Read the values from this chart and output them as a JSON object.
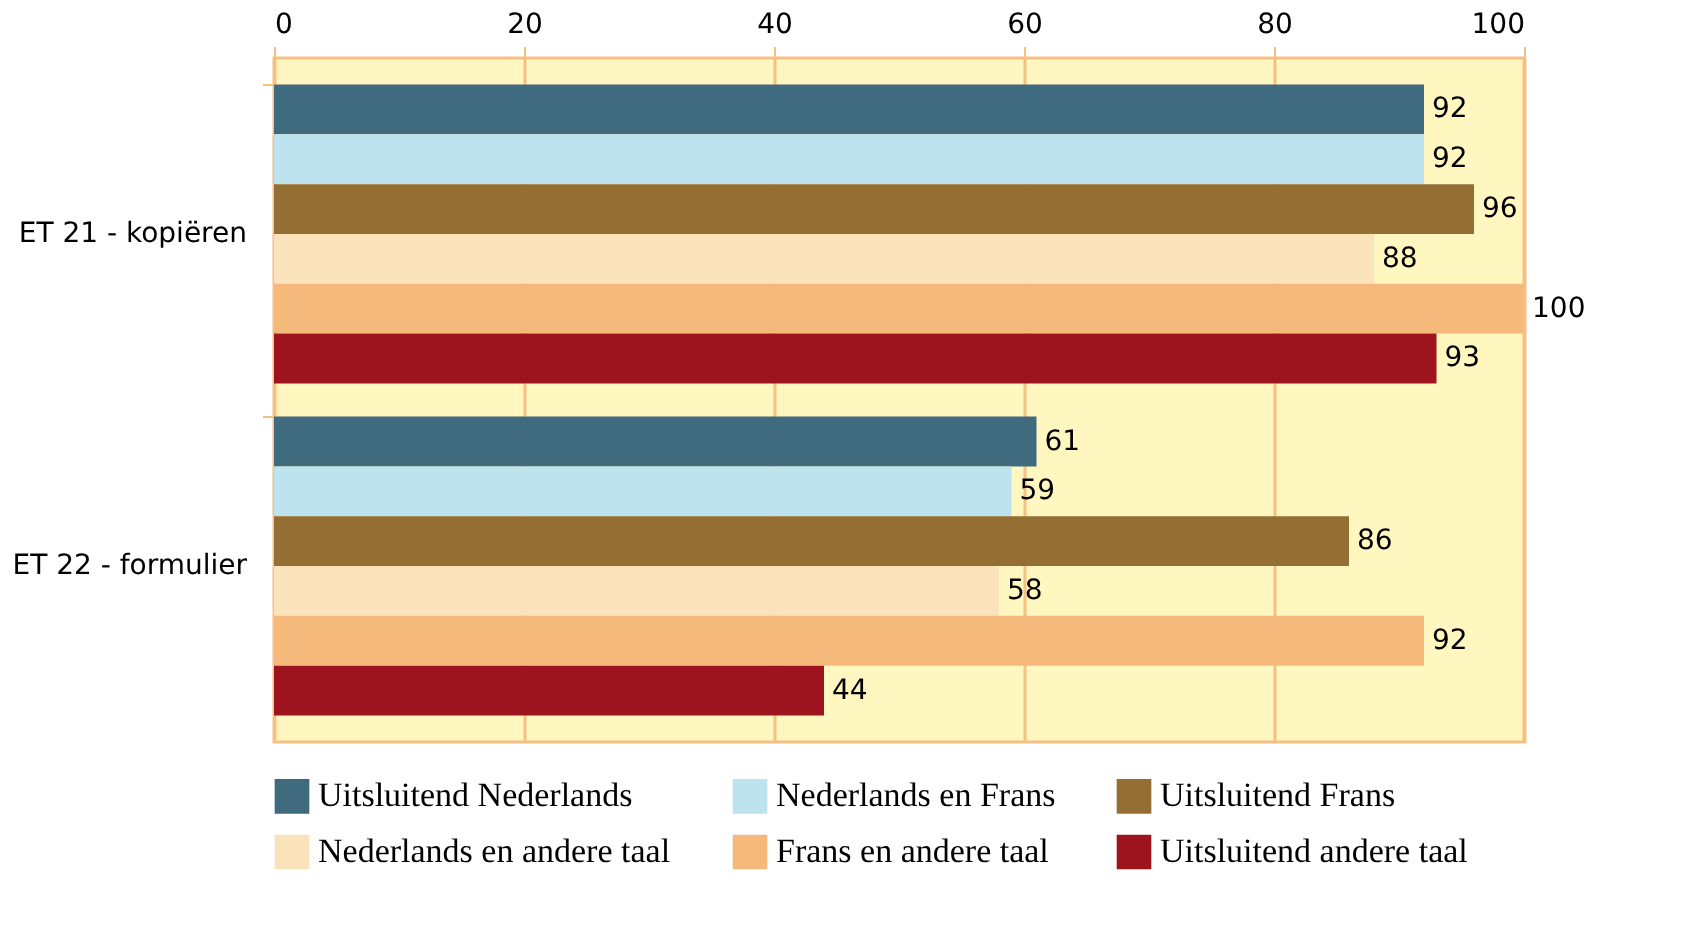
{
  "chart_data": {
    "type": "bar",
    "orientation": "horizontal",
    "categories": [
      "ET 21 - kopiëren",
      "ET 22 - formulier"
    ],
    "series": [
      {
        "name": "Uitsluitend Nederlands",
        "color": "#406b7f",
        "values": [
          92,
          61
        ]
      },
      {
        "name": "Nederlands en Frans",
        "color": "#bde3ee",
        "values": [
          92,
          59
        ]
      },
      {
        "name": "Uitsluitend Frans",
        "color": "#946e32",
        "values": [
          96,
          86
        ]
      },
      {
        "name": "Nederlands en andere taal",
        "color": "#fae3bb",
        "values": [
          88,
          58
        ]
      },
      {
        "name": "Frans en andere taal",
        "color": "#f5b97b",
        "values": [
          100,
          92
        ]
      },
      {
        "name": "Uitsluitend andere taal",
        "color": "#9e141e",
        "values": [
          93,
          44
        ]
      }
    ],
    "xlim": [
      0,
      100
    ],
    "xticks": [
      0,
      20,
      40,
      60,
      80,
      100
    ],
    "grid": "x",
    "legend": "bottom",
    "data_labels": true
  }
}
